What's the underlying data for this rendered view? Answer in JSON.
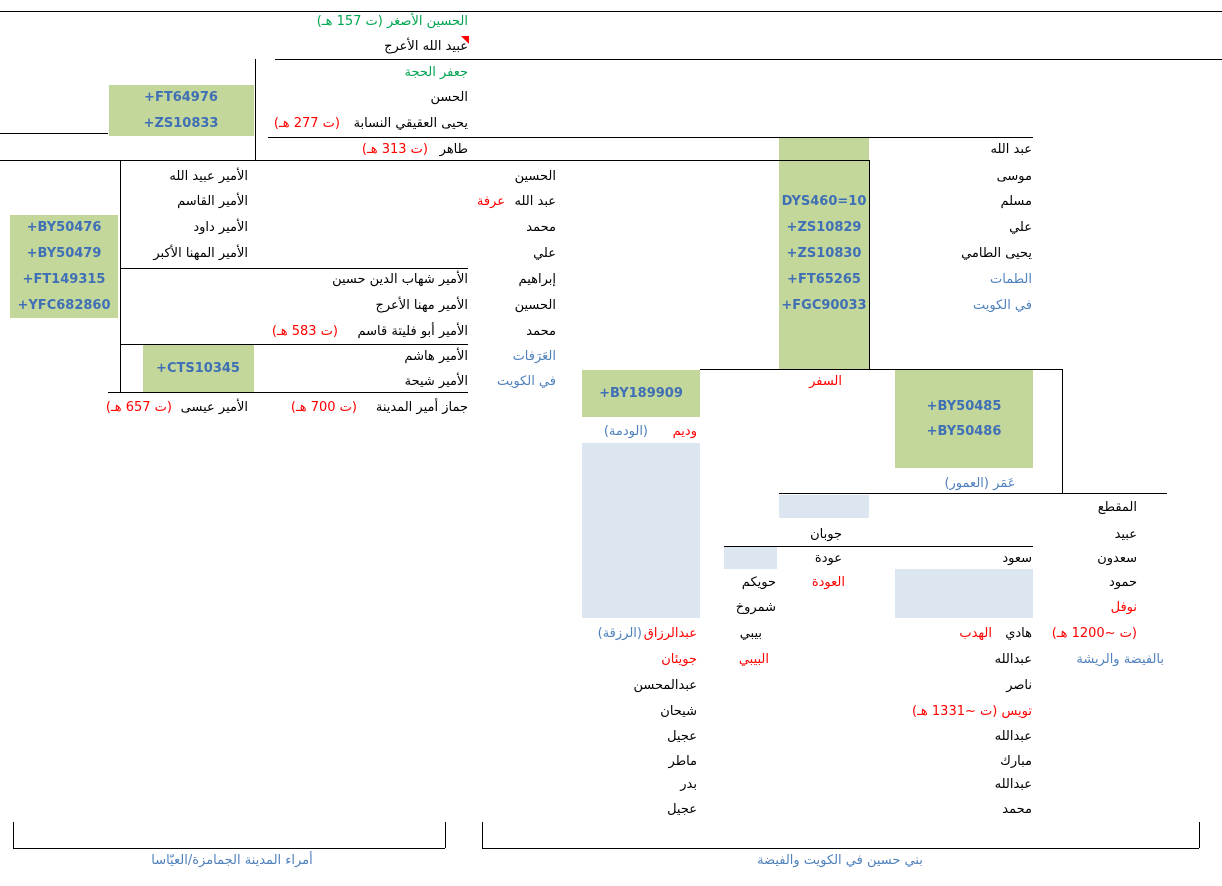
{
  "top": [
    "الحسين الأصغر (ت 157 هـ)",
    "عبيد الله الأعرج",
    "جعفر الحجة",
    "الحسن",
    "يحيى العقيقي النسابة",
    "(ت 277 هـ)",
    "طاهر",
    "(ت 313 هـ)"
  ],
  "markers": [
    "FT64976+",
    "ZS10833+",
    "DYS460=10",
    "ZS10829+",
    "ZS10830+",
    "FT65265+",
    "FGC90033+",
    "BY50476+",
    "BY50479+",
    "FT149315+",
    "YFC682860+",
    "CTS10345+",
    "BY189909+",
    "BY50485+",
    "BY50486+"
  ],
  "right": [
    "عبد الله",
    "موسى",
    "مسلم",
    "علي",
    "يحيى الطامي",
    "الطمات",
    "في الكويت"
  ],
  "middle": [
    "الحسين",
    "عبد الله",
    "عرفة",
    "محمد",
    "علي",
    "إبراهيم",
    "الحسين",
    "محمد",
    "العَرَفات",
    "في الكويت"
  ],
  "amirs": [
    "الأمير عبيد الله",
    "الأمير القاسم",
    "الأمير داود",
    "الأمير المهنا الأكبر",
    "الأمير شهاب الدين حسين",
    "الأمير مهنا الأعرج",
    "الأمير أبو فليتة قاسم",
    "(ت 583 هـ)",
    "الأمير هاشم",
    "الأمير شيحة",
    "جماز أمير المدينة",
    "(ت 700 هـ)",
    "الأمير عيسى",
    "(ت 657 هـ)"
  ],
  "kuwait": [
    "السفر",
    "وديم",
    "(الودمة)",
    "عَمَر (العمور)",
    "المقطع",
    "عبيد",
    "سعدون",
    "حمود",
    "نوفل",
    "(ت ~1200 هـ)",
    "بالفيضة والريشة",
    "جوبان",
    "عودة",
    "العودة",
    "سعود",
    "حويكم",
    "شمروخ",
    "بيبي",
    "البيبي",
    "هادي",
    "الهدب",
    "عبدالله",
    "ناصر",
    "تويس (ت ~1331 هـ)",
    "عبدالله",
    "مبارك",
    "عبدالله",
    "محمد",
    "عبدالرزاق",
    "(الرزقة)",
    "جويئان",
    "عبدالمحسن",
    "شيحان",
    "عجيل",
    "ماطر",
    "بدر",
    "عجيل"
  ],
  "footer": [
    "أمراء المدينة الجمامزة/العيّاسا",
    "بني حسين في الكويت والفيضة"
  ]
}
